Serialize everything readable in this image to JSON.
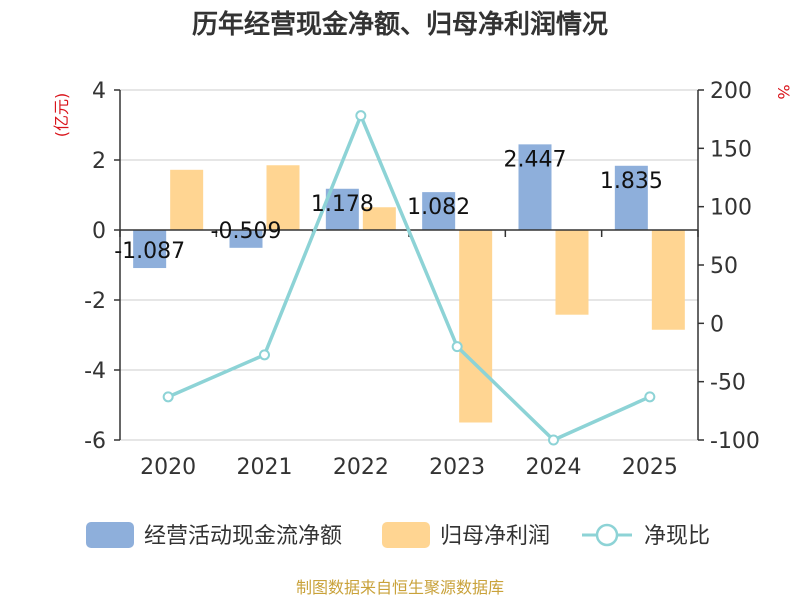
{
  "chart_data": {
    "type": "bar",
    "title": "历年经营现金净额、归母净利润情况",
    "categories": [
      "2020",
      "2021",
      "2022",
      "2023",
      "2024",
      "2025"
    ],
    "series": [
      {
        "name": "经营活动现金流净额",
        "axis": "left",
        "kind": "bar",
        "color": "#8eafdb",
        "values": [
          -1.087,
          -0.509,
          1.178,
          1.082,
          2.447,
          1.835
        ],
        "labels": [
          "-1.087",
          "-0.509",
          "1.178",
          "1.082",
          "2.447",
          "1.835"
        ]
      },
      {
        "name": "归母净利润",
        "axis": "left",
        "kind": "bar",
        "color": "#ffd592",
        "values": [
          1.72,
          1.85,
          0.65,
          -5.5,
          -2.42,
          -2.85
        ]
      },
      {
        "name": "净现比",
        "axis": "right",
        "kind": "line",
        "color": "#8dd3d6",
        "values": [
          -63,
          -27,
          178,
          -20,
          -100,
          -63
        ]
      }
    ],
    "y_left": {
      "label": "(亿元)",
      "ylim": [
        -6,
        4
      ],
      "ticks": [
        "-6",
        "-4",
        "-2",
        "0",
        "2",
        "4"
      ]
    },
    "y_right": {
      "label": "%",
      "ylim": [
        -100,
        200
      ],
      "ticks": [
        "-100",
        "-50",
        "0",
        "50",
        "100",
        "150",
        "200"
      ]
    },
    "grid": true,
    "legend_position": "bottom",
    "source": "制图数据来自恒生聚源数据库"
  }
}
